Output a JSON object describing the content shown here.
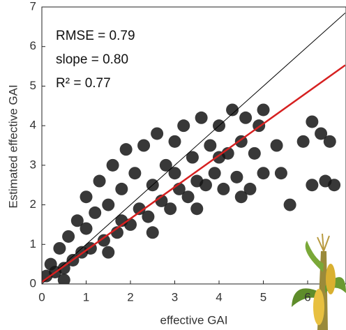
{
  "chart_data": {
    "type": "scatter",
    "xlabel": "effective GAI",
    "ylabel": "Estimated effective GAI",
    "annotations": [
      "RMSE = 0.79",
      "slope = 0.80",
      "R² = 0.77"
    ],
    "xlim": [
      0,
      6.85
    ],
    "ylim": [
      0,
      7
    ],
    "xticks": [
      0,
      1,
      2,
      3,
      4,
      5,
      6
    ],
    "yticks": [
      0,
      1,
      2,
      3,
      4,
      5,
      6,
      7
    ],
    "grid": false,
    "color": "#151515",
    "x": [
      0.1,
      0.2,
      0.3,
      0.4,
      0.5,
      0.6,
      0.7,
      0.8,
      0.9,
      1.0,
      1.0,
      1.1,
      1.2,
      1.3,
      1.4,
      1.5,
      1.6,
      1.7,
      1.8,
      1.9,
      2.0,
      2.1,
      2.2,
      2.3,
      2.4,
      2.5,
      2.6,
      2.7,
      2.8,
      2.9,
      3.0,
      3.1,
      3.2,
      3.3,
      3.4,
      3.5,
      3.6,
      3.7,
      3.8,
      3.9,
      4.0,
      4.1,
      4.2,
      4.3,
      4.4,
      4.5,
      4.6,
      4.7,
      4.8,
      4.9,
      5.0,
      5.0,
      5.3,
      5.4,
      5.6,
      5.9,
      6.1,
      6.1,
      6.3,
      6.4,
      6.5,
      6.6,
      0.5,
      1.5,
      2.5,
      3.5,
      4.5,
      1.8,
      3.0,
      4.0
    ],
    "values": [
      0.2,
      0.5,
      0.3,
      0.9,
      0.4,
      1.2,
      0.6,
      1.6,
      0.8,
      1.4,
      2.2,
      0.9,
      1.8,
      2.6,
      1.1,
      2.0,
      3.0,
      1.3,
      2.4,
      3.4,
      1.5,
      2.8,
      1.9,
      3.5,
      1.7,
      2.5,
      3.8,
      2.1,
      3.0,
      1.9,
      3.6,
      2.4,
      4.0,
      2.2,
      3.2,
      2.6,
      4.2,
      2.5,
      3.5,
      2.8,
      4.0,
      2.4,
      3.3,
      4.4,
      2.7,
      3.6,
      4.2,
      2.4,
      3.3,
      4.0,
      2.8,
      4.4,
      3.5,
      2.8,
      2.0,
      3.6,
      4.1,
      2.5,
      3.8,
      2.6,
      3.6,
      2.5,
      0.1,
      0.8,
      1.3,
      1.9,
      2.2,
      1.6,
      2.8,
      3.2
    ],
    "lines": [
      {
        "color": "#000000",
        "x": [
          0,
          6.85
        ],
        "values": [
          0,
          6.85
        ]
      },
      {
        "color": "#d62020",
        "x": [
          0,
          6.85
        ],
        "values": [
          0.05,
          5.53
        ]
      }
    ]
  }
}
